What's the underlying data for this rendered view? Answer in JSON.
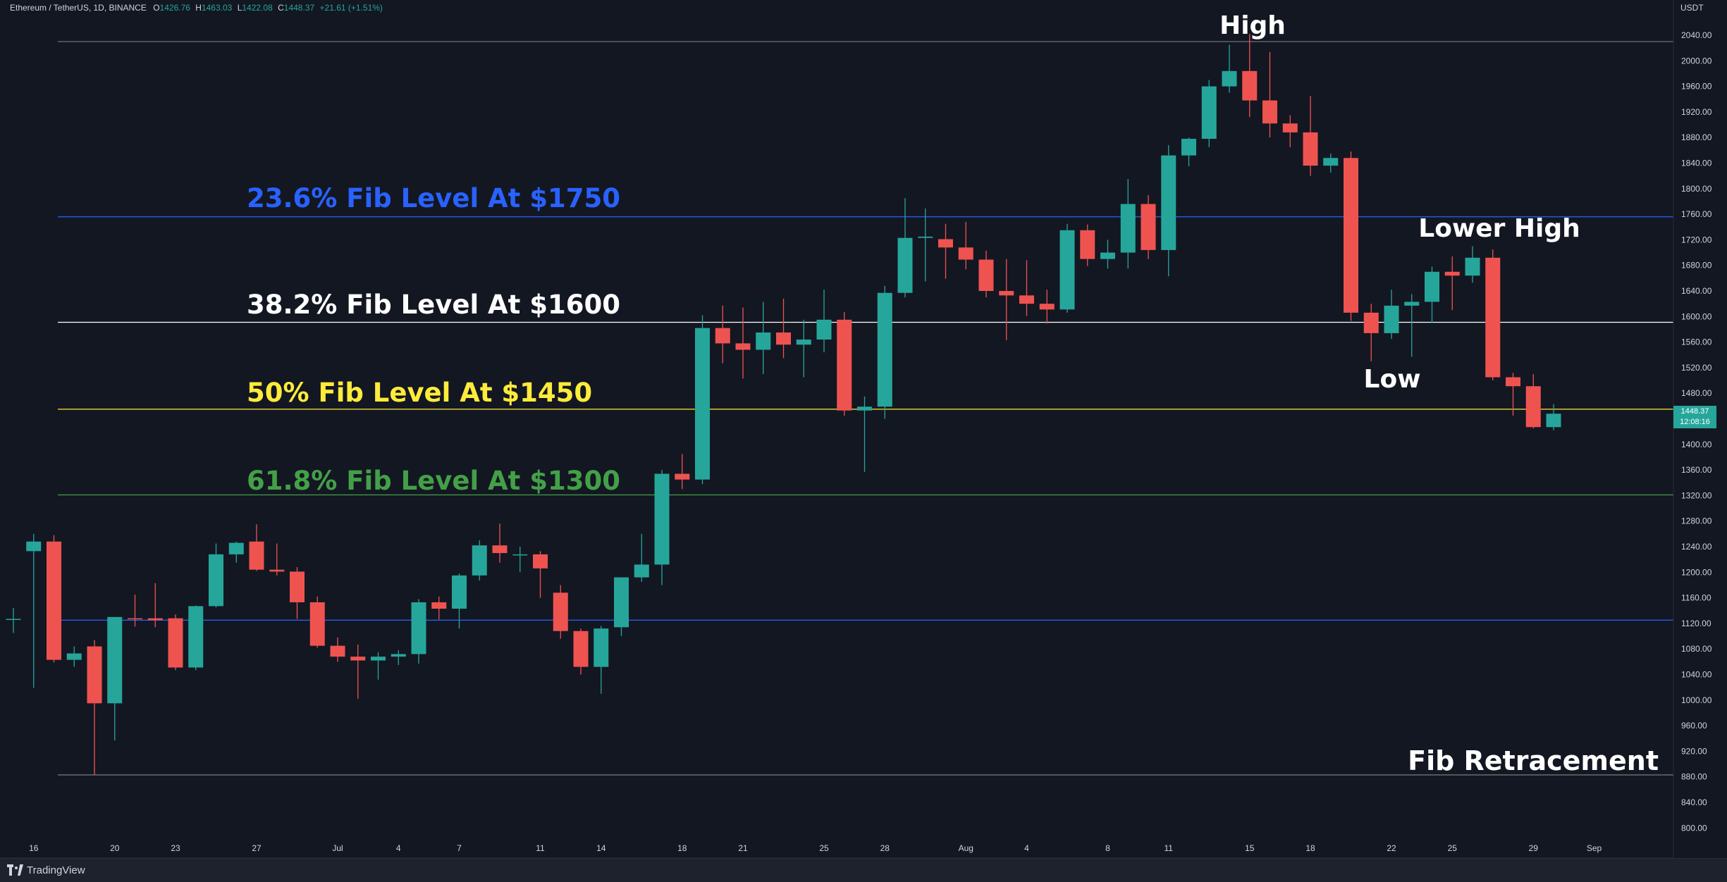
{
  "header": {
    "symbol": "Ethereum / TetherUS, 1D, BINANCE",
    "open_label": "O",
    "open": "1426.76",
    "high_label": "H",
    "high": "1463.03",
    "low_label": "L",
    "low": "1422.08",
    "close_label": "C",
    "close": "1448.37",
    "change": "+21.61 (+1.51%)"
  },
  "footer": {
    "brand": "TradingView"
  },
  "price_badge": {
    "price": "1448.37",
    "countdown": "12:08:16"
  },
  "colors": {
    "background": "#131722",
    "up": "#26a69a",
    "down": "#ef5350",
    "fib_236": "#2962ff",
    "fib_382": "#ffffff",
    "fib_50": "#ffeb3b",
    "fib_618": "#43a047",
    "axis_text": "#d1d4dc",
    "hline_blue": "#2962ff",
    "hline_grey": "#787b86"
  },
  "chart_data": {
    "type": "candlestick",
    "y_axis": {
      "unit": "USDT",
      "ylim": [
        780,
        2070
      ],
      "ticks": [
        "2040.00",
        "2000.00",
        "1960.00",
        "1920.00",
        "1880.00",
        "1840.00",
        "1800.00",
        "1760.00",
        "1720.00",
        "1680.00",
        "1640.00",
        "1600.00",
        "1560.00",
        "1520.00",
        "1480.00",
        "1440.00",
        "1400.00",
        "1360.00",
        "1320.00",
        "1280.00",
        "1240.00",
        "1200.00",
        "1160.00",
        "1120.00",
        "1080.00",
        "1040.00",
        "1000.00",
        "960.00",
        "920.00",
        "880.00",
        "840.00",
        "800.00"
      ]
    },
    "x_axis": {
      "ticks": [
        {
          "label": "16",
          "i": 1
        },
        {
          "label": "20",
          "i": 5
        },
        {
          "label": "23",
          "i": 8
        },
        {
          "label": "27",
          "i": 12
        },
        {
          "label": "Jul",
          "i": 16
        },
        {
          "label": "4",
          "i": 19
        },
        {
          "label": "7",
          "i": 22
        },
        {
          "label": "11",
          "i": 26
        },
        {
          "label": "14",
          "i": 29
        },
        {
          "label": "18",
          "i": 33
        },
        {
          "label": "21",
          "i": 36
        },
        {
          "label": "25",
          "i": 40
        },
        {
          "label": "28",
          "i": 43
        },
        {
          "label": "Aug",
          "i": 47
        },
        {
          "label": "4",
          "i": 50
        },
        {
          "label": "8",
          "i": 54
        },
        {
          "label": "11",
          "i": 57
        },
        {
          "label": "15",
          "i": 61
        },
        {
          "label": "18",
          "i": 64
        },
        {
          "label": "22",
          "i": 68
        },
        {
          "label": "25",
          "i": 71
        },
        {
          "label": "29",
          "i": 75
        },
        {
          "label": "Sep",
          "i": 78
        }
      ]
    },
    "candles": [
      {
        "o": 1126,
        "h": 1144,
        "l": 1105,
        "c": 1127
      },
      {
        "o": 1233,
        "h": 1260,
        "l": 1019,
        "c": 1248
      },
      {
        "o": 1248,
        "h": 1258,
        "l": 1059,
        "c": 1063
      },
      {
        "o": 1063,
        "h": 1084,
        "l": 1052,
        "c": 1073
      },
      {
        "o": 1084,
        "h": 1094,
        "l": 883,
        "c": 995
      },
      {
        "o": 995,
        "h": 1130,
        "l": 937,
        "c": 1130
      },
      {
        "o": 1128,
        "h": 1165,
        "l": 1115,
        "c": 1127
      },
      {
        "o": 1128,
        "h": 1183,
        "l": 1114,
        "c": 1125
      },
      {
        "o": 1128,
        "h": 1134,
        "l": 1047,
        "c": 1051
      },
      {
        "o": 1051,
        "h": 1148,
        "l": 1047,
        "c": 1147
      },
      {
        "o": 1147,
        "h": 1245,
        "l": 1145,
        "c": 1228
      },
      {
        "o": 1228,
        "h": 1248,
        "l": 1215,
        "c": 1246
      },
      {
        "o": 1248,
        "h": 1275,
        "l": 1202,
        "c": 1204
      },
      {
        "o": 1204,
        "h": 1245,
        "l": 1195,
        "c": 1201
      },
      {
        "o": 1201,
        "h": 1208,
        "l": 1127,
        "c": 1153
      },
      {
        "o": 1153,
        "h": 1162,
        "l": 1082,
        "c": 1085
      },
      {
        "o": 1085,
        "h": 1098,
        "l": 1060,
        "c": 1068
      },
      {
        "o": 1068,
        "h": 1087,
        "l": 1002,
        "c": 1062
      },
      {
        "o": 1062,
        "h": 1075,
        "l": 1032,
        "c": 1068
      },
      {
        "o": 1068,
        "h": 1078,
        "l": 1055,
        "c": 1072
      },
      {
        "o": 1072,
        "h": 1158,
        "l": 1057,
        "c": 1153
      },
      {
        "o": 1153,
        "h": 1162,
        "l": 1126,
        "c": 1143
      },
      {
        "o": 1143,
        "h": 1198,
        "l": 1112,
        "c": 1195
      },
      {
        "o": 1195,
        "h": 1250,
        "l": 1187,
        "c": 1242
      },
      {
        "o": 1242,
        "h": 1276,
        "l": 1215,
        "c": 1230
      },
      {
        "o": 1228,
        "h": 1240,
        "l": 1200,
        "c": 1228
      },
      {
        "o": 1228,
        "h": 1233,
        "l": 1160,
        "c": 1206
      },
      {
        "o": 1168,
        "h": 1180,
        "l": 1096,
        "c": 1108
      },
      {
        "o": 1108,
        "h": 1112,
        "l": 1040,
        "c": 1052
      },
      {
        "o": 1052,
        "h": 1116,
        "l": 1010,
        "c": 1112
      },
      {
        "o": 1114,
        "h": 1192,
        "l": 1100,
        "c": 1192
      },
      {
        "o": 1192,
        "h": 1260,
        "l": 1185,
        "c": 1212
      },
      {
        "o": 1212,
        "h": 1360,
        "l": 1180,
        "c": 1354
      },
      {
        "o": 1354,
        "h": 1385,
        "l": 1330,
        "c": 1345
      },
      {
        "o": 1345,
        "h": 1602,
        "l": 1338,
        "c": 1582
      },
      {
        "o": 1582,
        "h": 1617,
        "l": 1527,
        "c": 1558
      },
      {
        "o": 1558,
        "h": 1614,
        "l": 1503,
        "c": 1548
      },
      {
        "o": 1548,
        "h": 1623,
        "l": 1510,
        "c": 1575
      },
      {
        "o": 1575,
        "h": 1628,
        "l": 1535,
        "c": 1556
      },
      {
        "o": 1556,
        "h": 1595,
        "l": 1505,
        "c": 1564
      },
      {
        "o": 1564,
        "h": 1642,
        "l": 1544,
        "c": 1595
      },
      {
        "o": 1595,
        "h": 1607,
        "l": 1445,
        "c": 1453
      },
      {
        "o": 1453,
        "h": 1475,
        "l": 1357,
        "c": 1459
      },
      {
        "o": 1459,
        "h": 1648,
        "l": 1440,
        "c": 1637
      },
      {
        "o": 1637,
        "h": 1785,
        "l": 1630,
        "c": 1723
      },
      {
        "o": 1723,
        "h": 1769,
        "l": 1655,
        "c": 1725
      },
      {
        "o": 1721,
        "h": 1745,
        "l": 1659,
        "c": 1708
      },
      {
        "o": 1708,
        "h": 1748,
        "l": 1674,
        "c": 1689
      },
      {
        "o": 1689,
        "h": 1703,
        "l": 1630,
        "c": 1640
      },
      {
        "o": 1640,
        "h": 1690,
        "l": 1563,
        "c": 1633
      },
      {
        "o": 1633,
        "h": 1688,
        "l": 1601,
        "c": 1620
      },
      {
        "o": 1620,
        "h": 1642,
        "l": 1589,
        "c": 1611
      },
      {
        "o": 1611,
        "h": 1745,
        "l": 1606,
        "c": 1735
      },
      {
        "o": 1735,
        "h": 1744,
        "l": 1679,
        "c": 1690
      },
      {
        "o": 1690,
        "h": 1720,
        "l": 1675,
        "c": 1700
      },
      {
        "o": 1700,
        "h": 1815,
        "l": 1675,
        "c": 1776
      },
      {
        "o": 1776,
        "h": 1790,
        "l": 1690,
        "c": 1704
      },
      {
        "o": 1704,
        "h": 1868,
        "l": 1663,
        "c": 1852
      },
      {
        "o": 1852,
        "h": 1880,
        "l": 1835,
        "c": 1878
      },
      {
        "o": 1878,
        "h": 1970,
        "l": 1865,
        "c": 1960
      },
      {
        "o": 1960,
        "h": 2025,
        "l": 1950,
        "c": 1984
      },
      {
        "o": 1984,
        "h": 2042,
        "l": 1912,
        "c": 1938
      },
      {
        "o": 1938,
        "h": 2014,
        "l": 1880,
        "c": 1902
      },
      {
        "o": 1902,
        "h": 1915,
        "l": 1865,
        "c": 1888
      },
      {
        "o": 1888,
        "h": 1945,
        "l": 1820,
        "c": 1836
      },
      {
        "o": 1836,
        "h": 1855,
        "l": 1825,
        "c": 1848
      },
      {
        "o": 1848,
        "h": 1858,
        "l": 1593,
        "c": 1606
      },
      {
        "o": 1606,
        "h": 1620,
        "l": 1530,
        "c": 1574
      },
      {
        "o": 1574,
        "h": 1642,
        "l": 1565,
        "c": 1617
      },
      {
        "o": 1617,
        "h": 1635,
        "l": 1537,
        "c": 1623
      },
      {
        "o": 1623,
        "h": 1678,
        "l": 1590,
        "c": 1670
      },
      {
        "o": 1670,
        "h": 1694,
        "l": 1610,
        "c": 1664
      },
      {
        "o": 1664,
        "h": 1710,
        "l": 1653,
        "c": 1692
      },
      {
        "o": 1692,
        "h": 1705,
        "l": 1500,
        "c": 1505
      },
      {
        "o": 1505,
        "h": 1512,
        "l": 1445,
        "c": 1491
      },
      {
        "o": 1491,
        "h": 1510,
        "l": 1425,
        "c": 1427
      },
      {
        "o": 1427,
        "h": 1463,
        "l": 1422,
        "c": 1448
      }
    ],
    "horizontal_lines": [
      {
        "price": 2030,
        "color": "#787b86"
      },
      {
        "price": 1756,
        "color": "#2962ff"
      },
      {
        "price": 1591,
        "color": "#ffffff"
      },
      {
        "price": 1455,
        "color": "#ffeb3b"
      },
      {
        "price": 1321,
        "color": "#43a047"
      },
      {
        "price": 1125,
        "color": "#2962ff"
      },
      {
        "price": 883,
        "color": "#787b86"
      }
    ],
    "annotations": [
      {
        "text": "High",
        "color": "#ffffff"
      },
      {
        "text": "23.6% Fib Level At $1750",
        "color": "#2962ff"
      },
      {
        "text": "38.2% Fib Level At $1600",
        "color": "#ffffff"
      },
      {
        "text": "50% Fib Level At $1450",
        "color": "#ffeb3b"
      },
      {
        "text": "61.8% Fib Level At $1300",
        "color": "#43a047"
      },
      {
        "text": "Lower High",
        "color": "#ffffff"
      },
      {
        "text": "Low",
        "color": "#ffffff"
      },
      {
        "text": "Fib Retracement",
        "color": "#ffffff"
      }
    ]
  }
}
